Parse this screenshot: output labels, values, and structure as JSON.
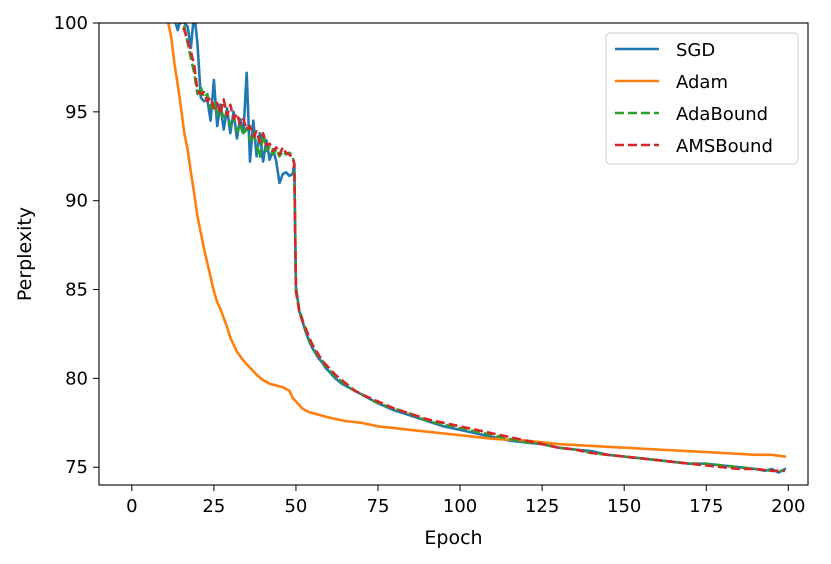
{
  "chart_data": {
    "type": "line",
    "xlabel": "Epoch",
    "ylabel": "Perplexity",
    "xlim": [
      -10,
      206
    ],
    "ylim": [
      74,
      100
    ],
    "xticks": [
      0,
      25,
      50,
      75,
      100,
      125,
      150,
      175,
      200
    ],
    "yticks": [
      75,
      80,
      85,
      90,
      95,
      100
    ],
    "legend_position": "top-right",
    "series": [
      {
        "name": "SGD",
        "color": "#1f77b4",
        "style": "solid",
        "x": [
          10,
          13,
          14,
          15,
          16,
          17,
          18,
          19,
          20,
          21,
          22,
          23,
          24,
          25,
          26,
          27,
          28,
          29,
          30,
          31,
          32,
          33,
          34,
          35,
          36,
          37,
          38,
          39,
          40,
          41,
          42,
          43,
          44,
          45,
          46,
          47,
          48,
          49,
          49.5,
          50,
          51,
          52,
          53,
          54,
          55,
          56,
          57,
          58,
          59,
          60,
          62,
          64,
          66,
          68,
          70,
          75,
          80,
          85,
          90,
          95,
          100,
          105,
          110,
          115,
          120,
          125,
          130,
          135,
          140,
          145,
          150,
          155,
          160,
          165,
          170,
          175,
          180,
          185,
          190,
          193,
          195,
          197,
          199
        ],
        "y": [
          101,
          100.2,
          99.6,
          100.4,
          100.0,
          99.8,
          98.6,
          100.6,
          98.8,
          95.8,
          95.6,
          95.7,
          94.5,
          96.8,
          94.2,
          95.4,
          94.0,
          95.2,
          93.8,
          95.0,
          93.5,
          94.6,
          93.8,
          97.2,
          92.2,
          94.5,
          92.5,
          93.8,
          92.2,
          93.4,
          92.3,
          92.9,
          92.2,
          91.0,
          91.5,
          91.6,
          91.4,
          91.5,
          92.1,
          85.2,
          83.8,
          83.2,
          82.6,
          82.1,
          81.7,
          81.4,
          81.1,
          80.9,
          80.6,
          80.4,
          80.0,
          79.7,
          79.5,
          79.3,
          79.1,
          78.6,
          78.2,
          77.9,
          77.6,
          77.3,
          77.1,
          76.9,
          76.7,
          76.5,
          76.4,
          76.3,
          76.1,
          76.0,
          75.9,
          75.7,
          75.6,
          75.5,
          75.4,
          75.3,
          75.2,
          75.2,
          75.1,
          75.0,
          74.9,
          74.8,
          74.9,
          74.7,
          74.9
        ]
      },
      {
        "name": "Adam",
        "color": "#ff7f0e",
        "style": "solid",
        "x": [
          10,
          12,
          13,
          14,
          15,
          16,
          17,
          18,
          19,
          20,
          21,
          22,
          23,
          24,
          25,
          26,
          27,
          28,
          29,
          30,
          31,
          32,
          34,
          36,
          38,
          40,
          42,
          44,
          46,
          48,
          49,
          50,
          51,
          52,
          54,
          56,
          58,
          60,
          65,
          70,
          75,
          80,
          85,
          90,
          95,
          100,
          110,
          120,
          130,
          140,
          150,
          160,
          170,
          180,
          190,
          195,
          199
        ],
        "y": [
          101,
          99.2,
          97.7,
          96.5,
          95.2,
          93.8,
          92.9,
          91.6,
          90.4,
          89.1,
          88.2,
          87.3,
          86.5,
          85.7,
          84.9,
          84.3,
          83.9,
          83.4,
          82.9,
          82.3,
          81.9,
          81.5,
          81.0,
          80.6,
          80.2,
          79.9,
          79.7,
          79.6,
          79.5,
          79.3,
          78.9,
          78.7,
          78.5,
          78.3,
          78.1,
          78.0,
          77.9,
          77.8,
          77.6,
          77.5,
          77.3,
          77.2,
          77.1,
          77.0,
          76.9,
          76.8,
          76.6,
          76.5,
          76.3,
          76.2,
          76.1,
          76.0,
          75.9,
          75.8,
          75.7,
          75.7,
          75.6
        ]
      },
      {
        "name": "AdaBound",
        "color": "#2ca02c",
        "style": "dashed",
        "x": [
          14,
          16,
          18,
          19,
          20,
          21,
          22,
          23,
          24,
          25,
          26,
          27,
          28,
          29,
          30,
          31,
          32,
          33,
          34,
          35,
          36,
          37,
          38,
          39,
          40,
          41,
          42,
          43,
          44,
          45,
          46,
          47,
          48,
          49,
          49.5,
          50,
          51,
          52,
          53,
          54,
          55,
          56,
          57,
          58,
          59,
          60,
          62,
          64,
          66,
          68,
          70,
          75,
          80,
          85,
          90,
          95,
          100,
          105,
          110,
          115,
          120,
          125,
          130,
          135,
          140,
          145,
          150,
          155,
          160,
          165,
          170,
          175,
          180,
          185,
          190,
          195,
          199
        ],
        "y": [
          100.5,
          99.8,
          98.0,
          97.2,
          96.0,
          96.4,
          95.8,
          96.0,
          95.2,
          95.6,
          94.8,
          95.3,
          94.6,
          95.0,
          94.2,
          94.7,
          93.9,
          94.3,
          93.7,
          94.1,
          93.4,
          93.8,
          93.2,
          92.4,
          93.8,
          92.8,
          93.0,
          92.6,
          92.9,
          92.5,
          92.8,
          92.6,
          92.7,
          92.5,
          92.0,
          85.0,
          83.9,
          83.3,
          82.7,
          82.2,
          81.8,
          81.5,
          81.2,
          81.0,
          80.7,
          80.5,
          80.1,
          79.8,
          79.5,
          79.3,
          79.1,
          78.6,
          78.3,
          78.0,
          77.6,
          77.4,
          77.2,
          77.0,
          76.8,
          76.6,
          76.4,
          76.3,
          76.1,
          76.0,
          75.8,
          75.7,
          75.6,
          75.5,
          75.4,
          75.3,
          75.2,
          75.2,
          75.1,
          75.0,
          74.9,
          74.8,
          74.8
        ]
      },
      {
        "name": "AMSBound",
        "color": "#d62728",
        "style": "dashed",
        "x": [
          14,
          16,
          18,
          19,
          20,
          21,
          22,
          23,
          24,
          25,
          26,
          27,
          28,
          29,
          30,
          31,
          32,
          33,
          34,
          35,
          36,
          37,
          38,
          39,
          40,
          41,
          42,
          43,
          44,
          45,
          46,
          47,
          48,
          49,
          49.5,
          50,
          51,
          52,
          53,
          54,
          55,
          56,
          57,
          58,
          59,
          60,
          62,
          64,
          66,
          68,
          70,
          75,
          80,
          85,
          90,
          95,
          100,
          105,
          110,
          115,
          120,
          125,
          130,
          135,
          140,
          145,
          150,
          155,
          160,
          165,
          170,
          175,
          180,
          185,
          190,
          195,
          199
        ],
        "y": [
          100.4,
          99.6,
          98.4,
          97.6,
          96.2,
          96.0,
          96.1,
          95.6,
          95.8,
          95.2,
          95.5,
          94.9,
          95.7,
          94.8,
          95.4,
          94.6,
          94.9,
          94.3,
          94.6,
          94.0,
          94.2,
          93.6,
          93.9,
          93.3,
          93.8,
          93.1,
          93.2,
          92.8,
          93.0,
          92.6,
          93.0,
          92.7,
          92.6,
          92.4,
          92.1,
          84.9,
          83.8,
          83.2,
          82.8,
          82.3,
          81.9,
          81.6,
          81.3,
          81.0,
          80.8,
          80.6,
          80.2,
          79.9,
          79.6,
          79.3,
          79.1,
          78.7,
          78.3,
          78.0,
          77.7,
          77.5,
          77.3,
          77.1,
          76.9,
          76.7,
          76.5,
          76.3,
          76.1,
          76.0,
          75.8,
          75.7,
          75.6,
          75.5,
          75.4,
          75.3,
          75.2,
          75.1,
          75.0,
          74.9,
          74.9,
          74.8,
          74.8
        ]
      }
    ]
  }
}
